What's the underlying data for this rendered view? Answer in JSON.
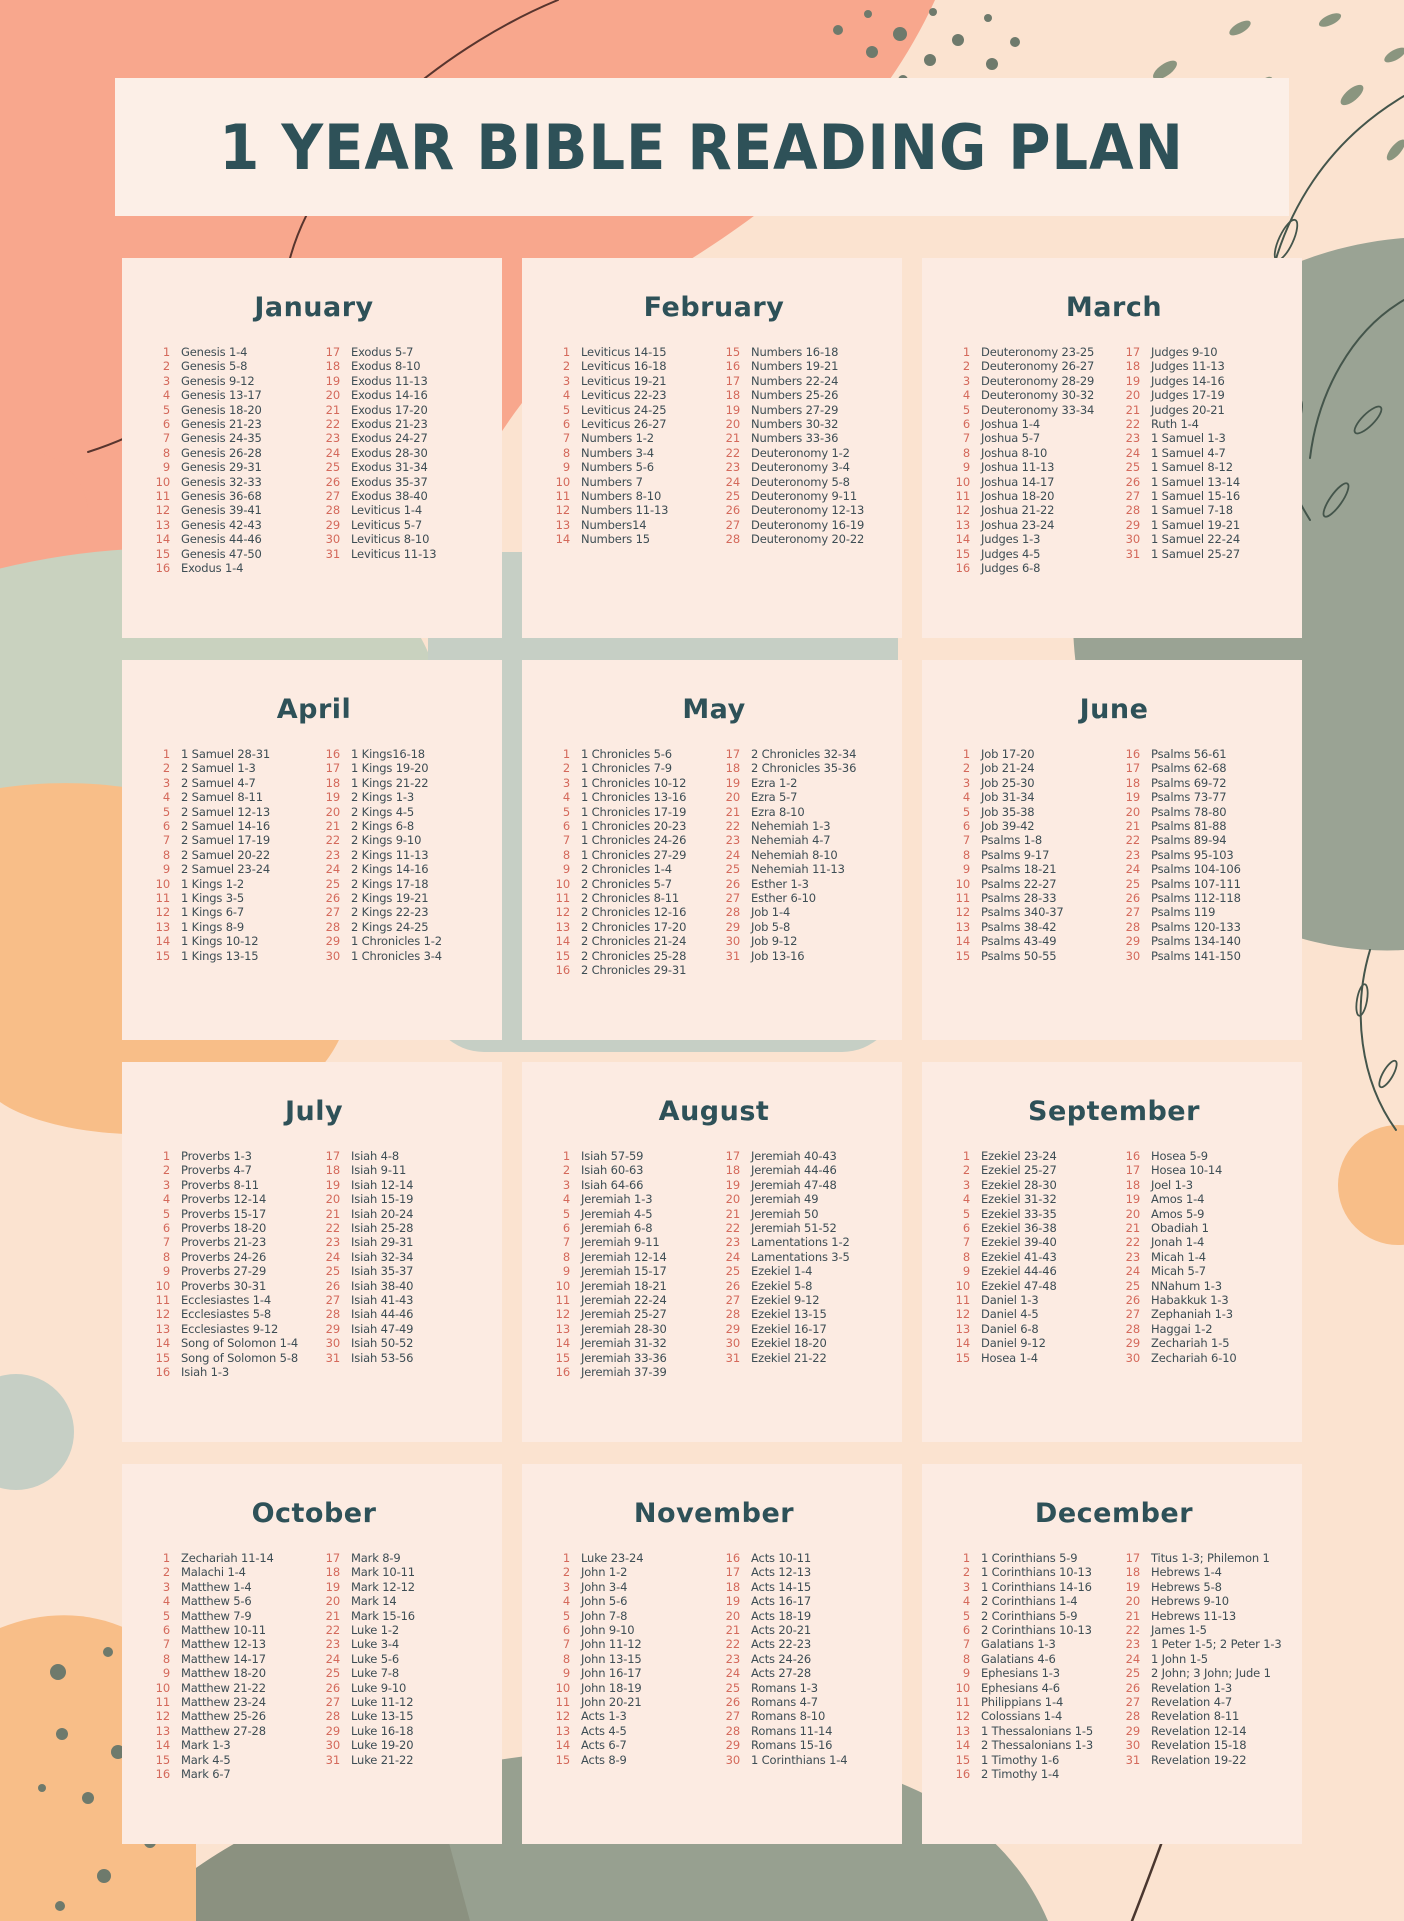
{
  "poster": {
    "title": "1 YEAR BIBLE READING PLAN"
  },
  "palette": {
    "page_background": "#FBE3D0",
    "banner_background": "#FCEFE7",
    "card_background": "#FCEBE2",
    "title_color": "#2E5158",
    "month_title_color": "#2E5158",
    "day_number_color": "#D4695B",
    "reading_text_color": "#3D4D54",
    "coral_blob": "#F8A78D",
    "orange_blob": "#F8BE88",
    "sage_blob": "#9AA394",
    "olive_dot": "#6E7A6C"
  },
  "months": [
    {
      "name": "January",
      "readings": [
        "Genesis 1-4",
        "Genesis 5-8",
        "Genesis 9-12",
        "Genesis 13-17",
        "Genesis 18-20",
        "Genesis 21-23",
        "Genesis 24-35",
        "Genesis 26-28",
        "Genesis 29-31",
        "Genesis 32-33",
        "Genesis 36-68",
        "Genesis 39-41",
        "Genesis 42-43",
        "Genesis 44-46",
        "Genesis 47-50",
        "Exodus 1-4",
        "Exodus 5-7",
        "Exodus 8-10",
        "Exodus 11-13",
        "Exodus 14-16",
        "Exodus 17-20",
        "Exodus 21-23",
        "Exodus 24-27",
        "Exodus 28-30",
        "Exodus 31-34",
        "Exodus 35-37",
        "Exodus 38-40",
        "Leviticus 1-4",
        "Leviticus 5-7",
        "Leviticus 8-10",
        "Leviticus 11-13"
      ]
    },
    {
      "name": "February",
      "readings": [
        "Leviticus 14-15",
        "Leviticus 16-18",
        "Leviticus 19-21",
        "Leviticus 22-23",
        "Leviticus 24-25",
        "Leviticus 26-27",
        "Numbers 1-2",
        "Numbers 3-4",
        "Numbers 5-6",
        "Numbers 7",
        "Numbers 8-10",
        "Numbers 11-13",
        "Numbers14",
        "Numbers 15",
        "Numbers 16-18",
        "Numbers 19-21",
        "Numbers 22-24",
        "Numbers 25-26",
        "Numbers 27-29",
        "Numbers 30-32",
        "Numbers 33-36",
        "Deuteronomy 1-2",
        "Deuteronomy 3-4",
        "Deuteronomy 5-8",
        "Deuteronomy 9-11",
        "Deuteronomy 12-13",
        "Deuteronomy 16-19",
        "Deuteronomy 20-22"
      ]
    },
    {
      "name": "March",
      "readings": [
        "Deuteronomy 23-25",
        "Deuteronomy 26-27",
        "Deuteronomy 28-29",
        "Deuteronomy 30-32",
        "Deuteronomy 33-34",
        "Joshua 1-4",
        "Joshua 5-7",
        "Joshua 8-10",
        "Joshua 11-13",
        "Joshua 14-17",
        "Joshua 18-20",
        "Joshua 21-22",
        "Joshua 23-24",
        "Judges 1-3",
        "Judges 4-5",
        "Judges 6-8",
        "Judges 9-10",
        "Judges 11-13",
        "Judges 14-16",
        "Judges 17-19",
        "Judges 20-21",
        "Ruth 1-4",
        "1 Samuel 1-3",
        "1 Samuel 4-7",
        "1 Samuel 8-12",
        "1 Samuel 13-14",
        "1 Samuel 15-16",
        "1 Samuel 7-18",
        "1 Samuel 19-21",
        "1 Samuel 22-24",
        "1 Samuel 25-27"
      ]
    },
    {
      "name": "April",
      "readings": [
        "1 Samuel 28-31",
        "2 Samuel 1-3",
        "2 Samuel 4-7",
        "2 Samuel 8-11",
        "2 Samuel 12-13",
        "2 Samuel 14-16",
        "2 Samuel 17-19",
        "2 Samuel 20-22",
        "2 Samuel 23-24",
        "1 Kings 1-2",
        "1 Kings 3-5",
        "1 Kings 6-7",
        "1 Kings 8-9",
        "1 Kings 10-12",
        "1 Kings 13-15",
        "1 Kings16-18",
        "1 Kings 19-20",
        "1 Kings 21-22",
        "2 Kings 1-3",
        "2 Kings 4-5",
        "2 Kings 6-8",
        "2 Kings 9-10",
        "2 Kings 11-13",
        "2 Kings 14-16",
        "2 Kings 17-18",
        "2 Kings 19-21",
        "2 Kings 22-23",
        "2 Kings 24-25",
        "1 Chronicles 1-2",
        "1 Chronicles 3-4"
      ]
    },
    {
      "name": "May",
      "readings": [
        "1 Chronicles 5-6",
        "1 Chronicles 7-9",
        "1 Chronicles 10-12",
        "1 Chronicles 13-16",
        "1 Chronicles 17-19",
        "1 Chronicles 20-23",
        "1 Chronicles 24-26",
        "1 Chronicles 27-29",
        "2 Chronicles 1-4",
        "2 Chronicles 5-7",
        "2 Chronicles 8-11",
        "2 Chronicles 12-16",
        "2 Chronicles 17-20",
        "2 Chronicles 21-24",
        "2 Chronicles 25-28",
        "2 Chronicles 29-31",
        "2 Chronicles 32-34",
        "2 Chronicles 35-36",
        "Ezra 1-2",
        "Ezra 5-7",
        "Ezra 8-10",
        "Nehemiah 1-3",
        "Nehemiah 4-7",
        "Nehemiah 8-10",
        "Nehemiah 11-13",
        "Esther 1-3",
        "Esther 6-10",
        "Job 1-4",
        "Job 5-8",
        "Job 9-12",
        "Job 13-16"
      ]
    },
    {
      "name": "June",
      "readings": [
        "Job 17-20",
        "Job 21-24",
        "Job 25-30",
        "Job 31-34",
        "Job 35-38",
        "Job 39-42",
        "Psalms 1-8",
        "Psalms 9-17",
        "Psalms 18-21",
        "Psalms 22-27",
        "Psalms 28-33",
        "Psalms 340-37",
        "Psalms 38-42",
        "Psalms 43-49",
        "Psalms 50-55",
        "Psalms 56-61",
        "Psalms 62-68",
        "Psalms 69-72",
        "Psalms 73-77",
        "Psalms 78-80",
        "Psalms 81-88",
        "Psalms 89-94",
        "Psalms 95-103",
        "Psalms 104-106",
        "Psalms 107-111",
        "Psalms 112-118",
        "Psalms 119",
        "Psalms 120-133",
        "Psalms 134-140",
        "Psalms 141-150"
      ]
    },
    {
      "name": "July",
      "readings": [
        "Proverbs 1-3",
        "Proverbs 4-7",
        "Proverbs 8-11",
        "Proverbs 12-14",
        "Proverbs 15-17",
        "Proverbs 18-20",
        "Proverbs 21-23",
        "Proverbs 24-26",
        "Proverbs 27-29",
        "Proverbs 30-31",
        "Ecclesiastes 1-4",
        "Ecclesiastes 5-8",
        "Ecclesiastes 9-12",
        "Song of Solomon 1-4",
        "Song of Solomon 5-8",
        "Isiah 1-3",
        "Isiah 4-8",
        "Isiah 9-11",
        "Isiah 12-14",
        "Isiah 15-19",
        "Isiah 20-24",
        "Isiah 25-28",
        "Isiah 29-31",
        "Isiah 32-34",
        "Isiah 35-37",
        "Isiah 38-40",
        "Isiah 41-43",
        "Isiah 44-46",
        "Isiah 47-49",
        "Isiah 50-52",
        "Isiah 53-56"
      ]
    },
    {
      "name": "August",
      "readings": [
        "Isiah 57-59",
        "Isiah 60-63",
        "Isiah 64-66",
        "Jeremiah 1-3",
        "Jeremiah 4-5",
        "Jeremiah 6-8",
        "Jeremiah 9-11",
        "Jeremiah 12-14",
        "Jeremiah 15-17",
        "Jeremiah 18-21",
        "Jeremiah 22-24",
        "Jeremiah 25-27",
        "Jeremiah 28-30",
        "Jeremiah 31-32",
        "Jeremiah 33-36",
        "Jeremiah 37-39",
        "Jeremiah 40-43",
        "Jeremiah 44-46",
        "Jeremiah 47-48",
        "Jeremiah 49",
        "Jeremiah 50",
        "Jeremiah 51-52",
        "Lamentations 1-2",
        "Lamentations 3-5",
        "Ezekiel 1-4",
        "Ezekiel 5-8",
        "Ezekiel 9-12",
        "Ezekiel 13-15",
        "Ezekiel 16-17",
        "Ezekiel 18-20",
        "Ezekiel 21-22"
      ]
    },
    {
      "name": "September",
      "readings": [
        "Ezekiel 23-24",
        "Ezekiel 25-27",
        "Ezekiel 28-30",
        "Ezekiel 31-32",
        "Ezekiel 33-35",
        "Ezekiel 36-38",
        "Ezekiel 39-40",
        "Ezekiel 41-43",
        "Ezekiel 44-46",
        "Ezekiel 47-48",
        "Daniel 1-3",
        "Daniel 4-5",
        "Daniel 6-8",
        "Daniel 9-12",
        "Hosea 1-4",
        "Hosea 5-9",
        "Hosea 10-14",
        "Joel 1-3",
        "Amos 1-4",
        "Amos 5-9",
        "Obadiah 1",
        "Jonah 1-4",
        "Micah 1-4",
        "Micah 5-7",
        "NNahum 1-3",
        "Habakkuk 1-3",
        "Zephaniah 1-3",
        "Haggai 1-2",
        "Zechariah 1-5",
        "Zechariah 6-10"
      ]
    },
    {
      "name": "October",
      "readings": [
        "Zechariah 11-14",
        "Malachi 1-4",
        "Matthew 1-4",
        "Matthew 5-6",
        "Matthew 7-9",
        "Matthew 10-11",
        "Matthew 12-13",
        "Matthew 14-17",
        "Matthew 18-20",
        "Matthew 21-22",
        "Matthew 23-24",
        "Matthew 25-26",
        "Matthew 27-28",
        "Mark 1-3",
        "Mark 4-5",
        "Mark 6-7",
        "Mark 8-9",
        "Mark 10-11",
        "Mark 12-12",
        "Mark 14",
        "Mark 15-16",
        "Luke 1-2",
        "Luke 3-4",
        "Luke 5-6",
        "Luke 7-8",
        "Luke 9-10",
        "Luke 11-12",
        "Luke 13-15",
        "Luke 16-18",
        "Luke 19-20",
        "Luke 21-22"
      ]
    },
    {
      "name": "November",
      "readings": [
        "Luke 23-24",
        "John 1-2",
        "John 3-4",
        "John 5-6",
        "John 7-8",
        "John 9-10",
        "John 11-12",
        "John 13-15",
        "John 16-17",
        "John 18-19",
        "John 20-21",
        "Acts 1-3",
        "Acts 4-5",
        "Acts 6-7",
        "Acts 8-9",
        "Acts 10-11",
        "Acts 12-13",
        "Acts 14-15",
        "Acts 16-17",
        "Acts 18-19",
        "Acts 20-21",
        "Acts 22-23",
        "Acts 24-26",
        "Acts 27-28",
        "Romans 1-3",
        "Romans 4-7",
        "Romans 8-10",
        "Romans 11-14",
        "Romans 15-16",
        "1 Corinthians 1-4"
      ]
    },
    {
      "name": "December",
      "readings": [
        "1 Corinthians 5-9",
        "1 Corinthians 10-13",
        "1 Corinthians 14-16",
        "2 Corinthians 1-4",
        "2 Corinthians 5-9",
        "2 Corinthians 10-13",
        "Galatians 1-3",
        "Galatians 4-6",
        "Ephesians 1-3",
        "Ephesians 4-6",
        "Philippians 1-4",
        "Colossians 1-4",
        "1 Thessalonians 1-5",
        "2 Thessalonians 1-3",
        "1 Timothy 1-6",
        "2 Timothy 1-4",
        "Titus 1-3; Philemon 1",
        "Hebrews 1-4",
        "Hebrews 5-8",
        "Hebrews 9-10",
        "Hebrews 11-13",
        "James 1-5",
        "1 Peter 1-5; 2 Peter 1-3",
        "1 John 1-5",
        "2 John; 3 John; Jude 1",
        "Revelation 1-3",
        "Revelation 4-7",
        "Revelation 8-11",
        "Revelation 12-14",
        "Revelation 15-18",
        "Revelation 19-22"
      ]
    }
  ]
}
